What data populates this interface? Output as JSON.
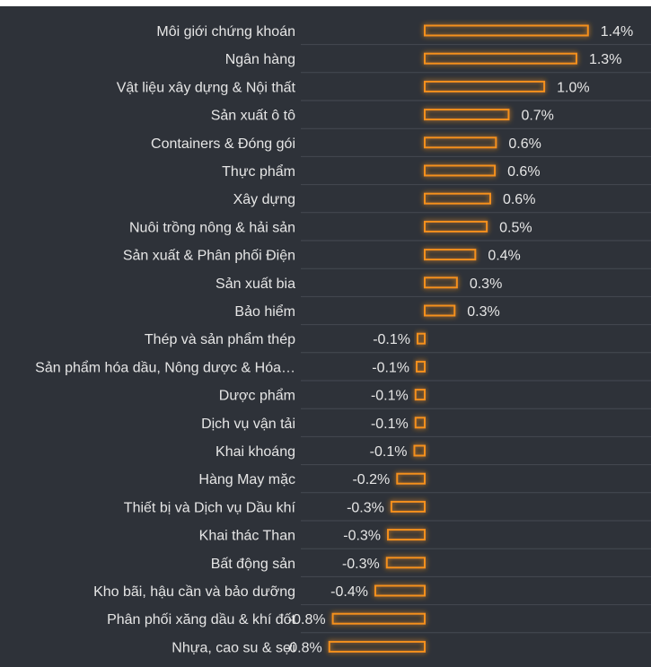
{
  "chart_data": {
    "type": "bar",
    "orientation": "horizontal",
    "categories": [
      "Môi giới chứng khoán",
      "Ngân hàng",
      "Vật liệu xây dựng & Nội thất",
      "Sản xuất ô tô",
      "Containers & Đóng gói",
      "Thực phẩm",
      "Xây dựng",
      "Nuôi trồng nông & hải sản",
      "Sản xuất & Phân phối Điện",
      "Sản xuất bia",
      "Bảo hiểm",
      "Thép và sản phẩm thép",
      "Sản phẩm hóa dầu, Nông dược & Hóa…",
      "Dược phẩm",
      "Dịch vụ vận tải",
      "Khai khoáng",
      "Hàng May mặc",
      "Thiết bị và Dịch vụ Dầu khí",
      "Khai thác Than",
      "Bất động sản",
      "Kho bãi, hậu cần và bảo dưỡng",
      "Phân phối xăng dầu & khí đốt",
      "Nhựa, cao su & sợi"
    ],
    "values": [
      1.42,
      1.32,
      1.04,
      0.73,
      0.62,
      0.61,
      0.57,
      0.54,
      0.44,
      0.28,
      0.26,
      -0.06,
      -0.07,
      -0.08,
      -0.08,
      -0.09,
      -0.24,
      -0.29,
      -0.32,
      -0.33,
      -0.43,
      -0.8,
      -0.83
    ],
    "value_labels": [
      "1.4%",
      "1.3%",
      "1.0%",
      "0.7%",
      "0.6%",
      "0.6%",
      "0.6%",
      "0.5%",
      "0.4%",
      "0.3%",
      "0.3%",
      "-0.1%",
      "-0.1%",
      "-0.1%",
      "-0.1%",
      "-0.1%",
      "-0.2%",
      "-0.3%",
      "-0.3%",
      "-0.3%",
      "-0.4%",
      "-0.8%",
      "-0.8%"
    ],
    "title": "",
    "xlabel": "",
    "ylabel": "",
    "xlim": [
      -0.85,
      1.5
    ],
    "grid": false,
    "legend": "none",
    "colors": {
      "background": "#2e3239",
      "bar_stroke": "#f5901f",
      "bar_glow": "#ff8c1a",
      "text": "#e6e6e6",
      "row_line": "#454a52"
    }
  }
}
